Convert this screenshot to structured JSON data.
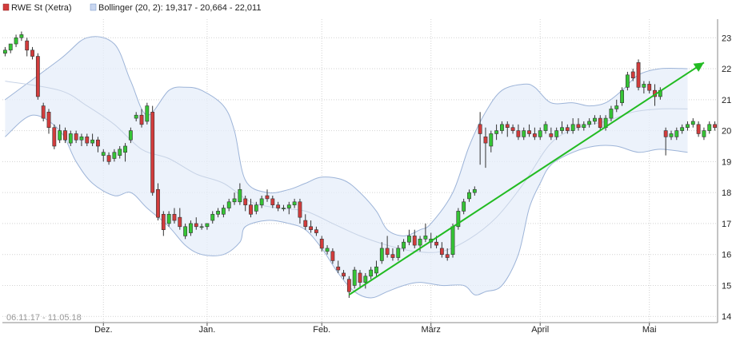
{
  "legend": {
    "main_label": "RWE St (Xetra)",
    "boll_label": "Bollinger (20, 2): 19,317 - 20,664 - 22,011"
  },
  "date_range": "06.11.17 - 11.05.18",
  "colors": {
    "up": "#35c435",
    "down": "#d23c3c",
    "band_fill": "#e6eefa",
    "band_line": "#9db4d8",
    "mid_line": "#c7d3e6",
    "trend": "#22bb22",
    "grid": "#d2d2d2"
  },
  "chart_data": {
    "type": "candlestick",
    "x_labels": [
      {
        "label": "Dez.",
        "index": 18
      },
      {
        "label": "Jan.",
        "index": 37
      },
      {
        "label": "Feb.",
        "index": 58
      },
      {
        "label": "März",
        "index": 78
      },
      {
        "label": "April",
        "index": 98
      },
      {
        "label": "Mai",
        "index": 118
      }
    ],
    "y_ticks": [
      14,
      15,
      16,
      17,
      18,
      19,
      20,
      21,
      22,
      23
    ],
    "ylim": [
      13.8,
      23.6
    ],
    "candles": [
      [
        22.5,
        22.7,
        22.4,
        22.6
      ],
      [
        22.6,
        22.8,
        22.5,
        22.8
      ],
      [
        22.8,
        23.1,
        22.7,
        23.0
      ],
      [
        23.0,
        23.2,
        22.9,
        23.1
      ],
      [
        22.9,
        23.0,
        22.4,
        22.6
      ],
      [
        22.6,
        22.7,
        22.3,
        22.4
      ],
      [
        22.4,
        22.5,
        21.0,
        21.1
      ],
      [
        20.8,
        20.9,
        20.3,
        20.4
      ],
      [
        20.6,
        20.7,
        19.9,
        20.1
      ],
      [
        20.1,
        20.2,
        19.4,
        19.5
      ],
      [
        19.7,
        20.2,
        19.6,
        20.0
      ],
      [
        20.0,
        20.1,
        19.6,
        19.7
      ],
      [
        19.6,
        20.0,
        19.5,
        19.9
      ],
      [
        19.9,
        20.0,
        19.6,
        19.7
      ],
      [
        19.7,
        19.9,
        19.5,
        19.8
      ],
      [
        19.8,
        19.9,
        19.5,
        19.6
      ],
      [
        19.6,
        19.9,
        19.5,
        19.7
      ],
      [
        19.7,
        19.8,
        19.3,
        19.5
      ],
      [
        19.2,
        19.4,
        19.0,
        19.3
      ],
      [
        19.2,
        19.3,
        18.9,
        19.0
      ],
      [
        19.1,
        19.4,
        19.0,
        19.3
      ],
      [
        19.2,
        19.5,
        19.1,
        19.4
      ],
      [
        19.3,
        19.6,
        19.0,
        19.5
      ],
      [
        19.7,
        20.1,
        19.6,
        20.0
      ],
      [
        20.4,
        20.6,
        20.3,
        20.5
      ],
      [
        20.5,
        20.7,
        20.1,
        20.2
      ],
      [
        20.3,
        20.9,
        20.2,
        20.8
      ],
      [
        20.6,
        20.8,
        17.9,
        18.0
      ],
      [
        18.1,
        18.3,
        17.1,
        17.2
      ],
      [
        17.3,
        17.4,
        16.6,
        16.8
      ],
      [
        17.0,
        17.4,
        16.9,
        17.3
      ],
      [
        17.3,
        17.5,
        17.0,
        17.1
      ],
      [
        17.2,
        17.5,
        16.8,
        16.9
      ],
      [
        16.6,
        17.0,
        16.5,
        16.9
      ],
      [
        16.7,
        17.1,
        16.6,
        17.0
      ],
      [
        17.0,
        17.2,
        16.8,
        16.9
      ],
      [
        16.9,
        17.0,
        16.8,
        16.9
      ],
      [
        16.9,
        17.0,
        16.8,
        17.0
      ],
      [
        17.1,
        17.4,
        17.0,
        17.3
      ],
      [
        17.3,
        17.5,
        17.2,
        17.4
      ],
      [
        17.3,
        17.6,
        17.2,
        17.5
      ],
      [
        17.5,
        17.8,
        17.4,
        17.7
      ],
      [
        17.7,
        18.0,
        17.6,
        17.8
      ],
      [
        17.7,
        18.3,
        17.6,
        18.1
      ],
      [
        17.8,
        17.9,
        17.4,
        17.6
      ],
      [
        17.6,
        17.8,
        17.2,
        17.3
      ],
      [
        17.4,
        17.7,
        17.3,
        17.6
      ],
      [
        17.6,
        17.9,
        17.5,
        17.8
      ],
      [
        17.9,
        18.1,
        17.7,
        17.8
      ],
      [
        17.8,
        17.9,
        17.5,
        17.6
      ],
      [
        17.6,
        17.7,
        17.4,
        17.5
      ],
      [
        17.5,
        17.6,
        17.4,
        17.5
      ],
      [
        17.5,
        17.7,
        17.3,
        17.6
      ],
      [
        17.6,
        17.8,
        17.5,
        17.7
      ],
      [
        17.7,
        17.8,
        17.0,
        17.2
      ],
      [
        17.1,
        17.3,
        16.8,
        16.9
      ],
      [
        16.9,
        17.1,
        16.7,
        16.8
      ],
      [
        16.8,
        16.9,
        16.6,
        16.7
      ],
      [
        16.5,
        16.6,
        16.1,
        16.2
      ],
      [
        16.1,
        16.3,
        16.0,
        16.2
      ],
      [
        16.1,
        16.2,
        15.7,
        15.8
      ],
      [
        15.6,
        15.8,
        15.4,
        15.5
      ],
      [
        15.4,
        15.5,
        15.2,
        15.3
      ],
      [
        15.2,
        15.3,
        14.6,
        14.8
      ],
      [
        15.0,
        15.6,
        14.9,
        15.5
      ],
      [
        15.4,
        15.5,
        14.9,
        15.1
      ],
      [
        15.1,
        15.4,
        14.9,
        15.3
      ],
      [
        15.3,
        15.6,
        15.2,
        15.5
      ],
      [
        15.4,
        15.8,
        15.3,
        15.6
      ],
      [
        15.8,
        16.4,
        15.7,
        16.2
      ],
      [
        16.2,
        16.6,
        15.9,
        16.0
      ],
      [
        16.0,
        16.2,
        15.8,
        15.9
      ],
      [
        15.9,
        16.3,
        15.8,
        16.2
      ],
      [
        16.2,
        16.5,
        16.1,
        16.4
      ],
      [
        16.4,
        16.8,
        16.3,
        16.6
      ],
      [
        16.6,
        16.8,
        16.2,
        16.3
      ],
      [
        16.3,
        16.6,
        16.1,
        16.5
      ],
      [
        16.5,
        17.0,
        16.4,
        16.6
      ],
      [
        16.4,
        16.7,
        16.2,
        16.5
      ],
      [
        16.4,
        16.6,
        16.2,
        16.3
      ],
      [
        16.2,
        16.4,
        15.9,
        16.0
      ],
      [
        16.0,
        16.2,
        15.8,
        15.9
      ],
      [
        16.0,
        17.0,
        15.9,
        16.9
      ],
      [
        16.9,
        17.5,
        16.8,
        17.4
      ],
      [
        17.4,
        17.8,
        17.3,
        17.7
      ],
      [
        17.8,
        18.1,
        17.7,
        18.0
      ],
      [
        18.0,
        18.2,
        17.9,
        18.1
      ],
      [
        20.2,
        20.6,
        18.9,
        19.9
      ],
      [
        19.8,
        20.1,
        18.8,
        19.6
      ],
      [
        19.5,
        20.0,
        19.3,
        19.9
      ],
      [
        19.9,
        20.2,
        19.7,
        20.0
      ],
      [
        20.0,
        20.3,
        19.9,
        20.2
      ],
      [
        20.2,
        20.3,
        19.8,
        20.1
      ],
      [
        20.1,
        20.2,
        19.9,
        20.0
      ],
      [
        20.0,
        20.2,
        19.7,
        19.8
      ],
      [
        19.8,
        20.1,
        19.7,
        20.0
      ],
      [
        20.0,
        20.2,
        19.8,
        19.9
      ],
      [
        19.9,
        20.1,
        19.7,
        19.8
      ],
      [
        19.8,
        20.1,
        19.7,
        20.0
      ],
      [
        20.0,
        20.3,
        19.9,
        20.2
      ],
      [
        19.9,
        20.1,
        19.7,
        19.8
      ],
      [
        19.8,
        20.1,
        19.7,
        20.0
      ],
      [
        20.0,
        20.3,
        19.9,
        20.1
      ],
      [
        20.1,
        20.2,
        19.9,
        20.0
      ],
      [
        20.0,
        20.4,
        19.9,
        20.2
      ],
      [
        20.2,
        20.4,
        20.0,
        20.1
      ],
      [
        20.1,
        20.3,
        20.0,
        20.2
      ],
      [
        20.2,
        20.4,
        20.1,
        20.3
      ],
      [
        20.3,
        20.5,
        20.2,
        20.4
      ],
      [
        20.4,
        20.5,
        20.0,
        20.1
      ],
      [
        20.1,
        20.5,
        20.0,
        20.4
      ],
      [
        20.4,
        20.8,
        20.3,
        20.7
      ],
      [
        20.7,
        21.0,
        20.6,
        20.8
      ],
      [
        20.9,
        21.4,
        20.8,
        21.3
      ],
      [
        21.4,
        21.9,
        21.3,
        21.8
      ],
      [
        21.9,
        22.0,
        21.6,
        21.7
      ],
      [
        22.2,
        22.3,
        21.3,
        21.4
      ],
      [
        21.4,
        21.6,
        21.2,
        21.5
      ],
      [
        21.5,
        21.6,
        21.2,
        21.3
      ],
      [
        21.3,
        21.5,
        20.8,
        21.1
      ],
      [
        21.1,
        21.4,
        21.0,
        21.3
      ],
      [
        20.0,
        20.1,
        19.2,
        19.8
      ],
      [
        19.8,
        20.0,
        19.7,
        19.9
      ],
      [
        19.8,
        20.1,
        19.7,
        20.0
      ],
      [
        20.0,
        20.2,
        19.9,
        20.1
      ],
      [
        20.1,
        20.3,
        20.0,
        20.2
      ],
      [
        20.2,
        20.4,
        20.1,
        20.3
      ],
      [
        20.2,
        20.3,
        19.8,
        19.9
      ],
      [
        19.8,
        20.1,
        19.7,
        20.0
      ],
      [
        20.0,
        20.3,
        19.9,
        20.2
      ],
      [
        20.2,
        20.3,
        20.0,
        20.1
      ]
    ],
    "bollinger": {
      "upper": [
        [
          0,
          21.0
        ],
        [
          10,
          22.3
        ],
        [
          15,
          23.0
        ],
        [
          20,
          22.8
        ],
        [
          23,
          21.6
        ],
        [
          26,
          20.5
        ],
        [
          30,
          21.3
        ],
        [
          33,
          21.4
        ],
        [
          36,
          21.3
        ],
        [
          40,
          20.8
        ],
        [
          42,
          20.0
        ],
        [
          44,
          18.4
        ],
        [
          48,
          18.0
        ],
        [
          52,
          18.1
        ],
        [
          55,
          18.3
        ],
        [
          58,
          18.5
        ],
        [
          62,
          18.4
        ],
        [
          65,
          18.0
        ],
        [
          68,
          17.4
        ],
        [
          70,
          16.8
        ],
        [
          73,
          16.6
        ],
        [
          76,
          16.8
        ],
        [
          78,
          17.0
        ],
        [
          82,
          18.0
        ],
        [
          85,
          19.5
        ],
        [
          88,
          20.6
        ],
        [
          91,
          21.3
        ],
        [
          95,
          21.5
        ],
        [
          97,
          21.4
        ],
        [
          100,
          20.9
        ],
        [
          104,
          20.9
        ],
        [
          107,
          20.8
        ],
        [
          110,
          20.9
        ],
        [
          113,
          21.3
        ],
        [
          116,
          21.8
        ],
        [
          120,
          22.0
        ],
        [
          125,
          22.0
        ]
      ],
      "lower": [
        [
          0,
          19.8
        ],
        [
          5,
          20.5
        ],
        [
          10,
          20.0
        ],
        [
          13,
          19.0
        ],
        [
          16,
          18.3
        ],
        [
          20,
          17.9
        ],
        [
          23,
          18.0
        ],
        [
          26,
          17.5
        ],
        [
          30,
          16.9
        ],
        [
          33,
          16.3
        ],
        [
          36,
          16.0
        ],
        [
          40,
          16.0
        ],
        [
          43,
          16.4
        ],
        [
          44,
          16.9
        ],
        [
          48,
          17.1
        ],
        [
          52,
          17.0
        ],
        [
          55,
          16.8
        ],
        [
          58,
          16.2
        ],
        [
          61,
          15.4
        ],
        [
          64,
          14.8
        ],
        [
          67,
          14.6
        ],
        [
          70,
          14.8
        ],
        [
          73,
          15.0
        ],
        [
          76,
          15.1
        ],
        [
          80,
          15.0
        ],
        [
          84,
          15.0
        ],
        [
          86,
          14.7
        ],
        [
          88,
          14.8
        ],
        [
          91,
          15.0
        ],
        [
          94,
          16.0
        ],
        [
          96,
          17.5
        ],
        [
          98,
          18.3
        ],
        [
          100,
          18.9
        ],
        [
          104,
          19.3
        ],
        [
          108,
          19.5
        ],
        [
          112,
          19.5
        ],
        [
          116,
          19.3
        ],
        [
          120,
          19.4
        ],
        [
          125,
          19.3
        ]
      ],
      "middle": [
        [
          0,
          21.6
        ],
        [
          10,
          21.3
        ],
        [
          15,
          20.8
        ],
        [
          20,
          20.2
        ],
        [
          25,
          19.4
        ],
        [
          30,
          19.1
        ],
        [
          35,
          18.6
        ],
        [
          40,
          18.3
        ],
        [
          45,
          17.7
        ],
        [
          50,
          17.5
        ],
        [
          55,
          17.4
        ],
        [
          60,
          17.0
        ],
        [
          65,
          16.6
        ],
        [
          70,
          16.3
        ],
        [
          75,
          16.1
        ],
        [
          80,
          16.1
        ],
        [
          85,
          16.5
        ],
        [
          90,
          17.2
        ],
        [
          95,
          18.3
        ],
        [
          100,
          19.6
        ],
        [
          105,
          20.1
        ],
        [
          110,
          20.3
        ],
        [
          115,
          20.6
        ],
        [
          120,
          20.7
        ],
        [
          125,
          20.7
        ]
      ]
    },
    "trend_line": {
      "from": [
        63,
        14.7
      ],
      "to": [
        128,
        22.2
      ]
    }
  }
}
